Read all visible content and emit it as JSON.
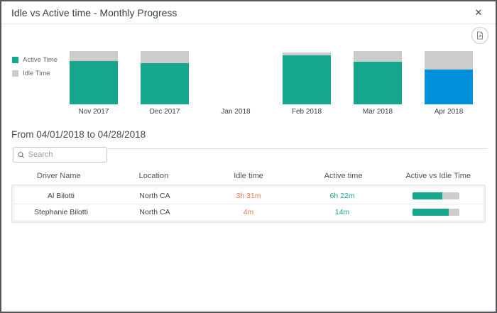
{
  "dialog": {
    "title": "Idle vs Active time - Monthly Progress",
    "close_glyph": "✕"
  },
  "legend": {
    "items": [
      {
        "label": "Active Time"
      },
      {
        "label": "Idle Time"
      }
    ]
  },
  "chart_data": {
    "type": "bar",
    "subtype": "stacked-percent",
    "title": "Idle vs Active time - Monthly Progress",
    "categories": [
      "Nov 2017",
      "Dec 2017",
      "Jan 2018",
      "Feb 2018",
      "Mar 2018",
      "Apr 2018"
    ],
    "series": [
      {
        "name": "Active Time",
        "values_pct": [
          81,
          78,
          null,
          92,
          80,
          65
        ]
      },
      {
        "name": "Idle Time",
        "values_pct": [
          19,
          22,
          null,
          6,
          20,
          35
        ]
      }
    ],
    "highlighted_category": "Apr 2018",
    "highlight_color": "#0090dc",
    "legend_position": "left",
    "axes_hidden": true
  },
  "period": {
    "label": "From 04/01/2018 to 04/28/2018"
  },
  "search": {
    "placeholder": "Search"
  },
  "table": {
    "columns": [
      "Driver Name",
      "Location",
      "Idle time",
      "Active time",
      "Active vs Idle Time"
    ],
    "rows": [
      {
        "driver": "Al Bilotti",
        "location": "North CA",
        "idle": "3h 31m",
        "active": "6h 22m",
        "active_pct": 64
      },
      {
        "driver": "Stephanie Bilotti",
        "location": "North CA",
        "idle": "4m",
        "active": "14m",
        "active_pct": 78
      }
    ]
  },
  "colors": {
    "active": "#17a78c",
    "idle": "#cccccc",
    "selected": "#0090dc",
    "idle_text": "#e4794e",
    "active_text": "#17a78c"
  }
}
